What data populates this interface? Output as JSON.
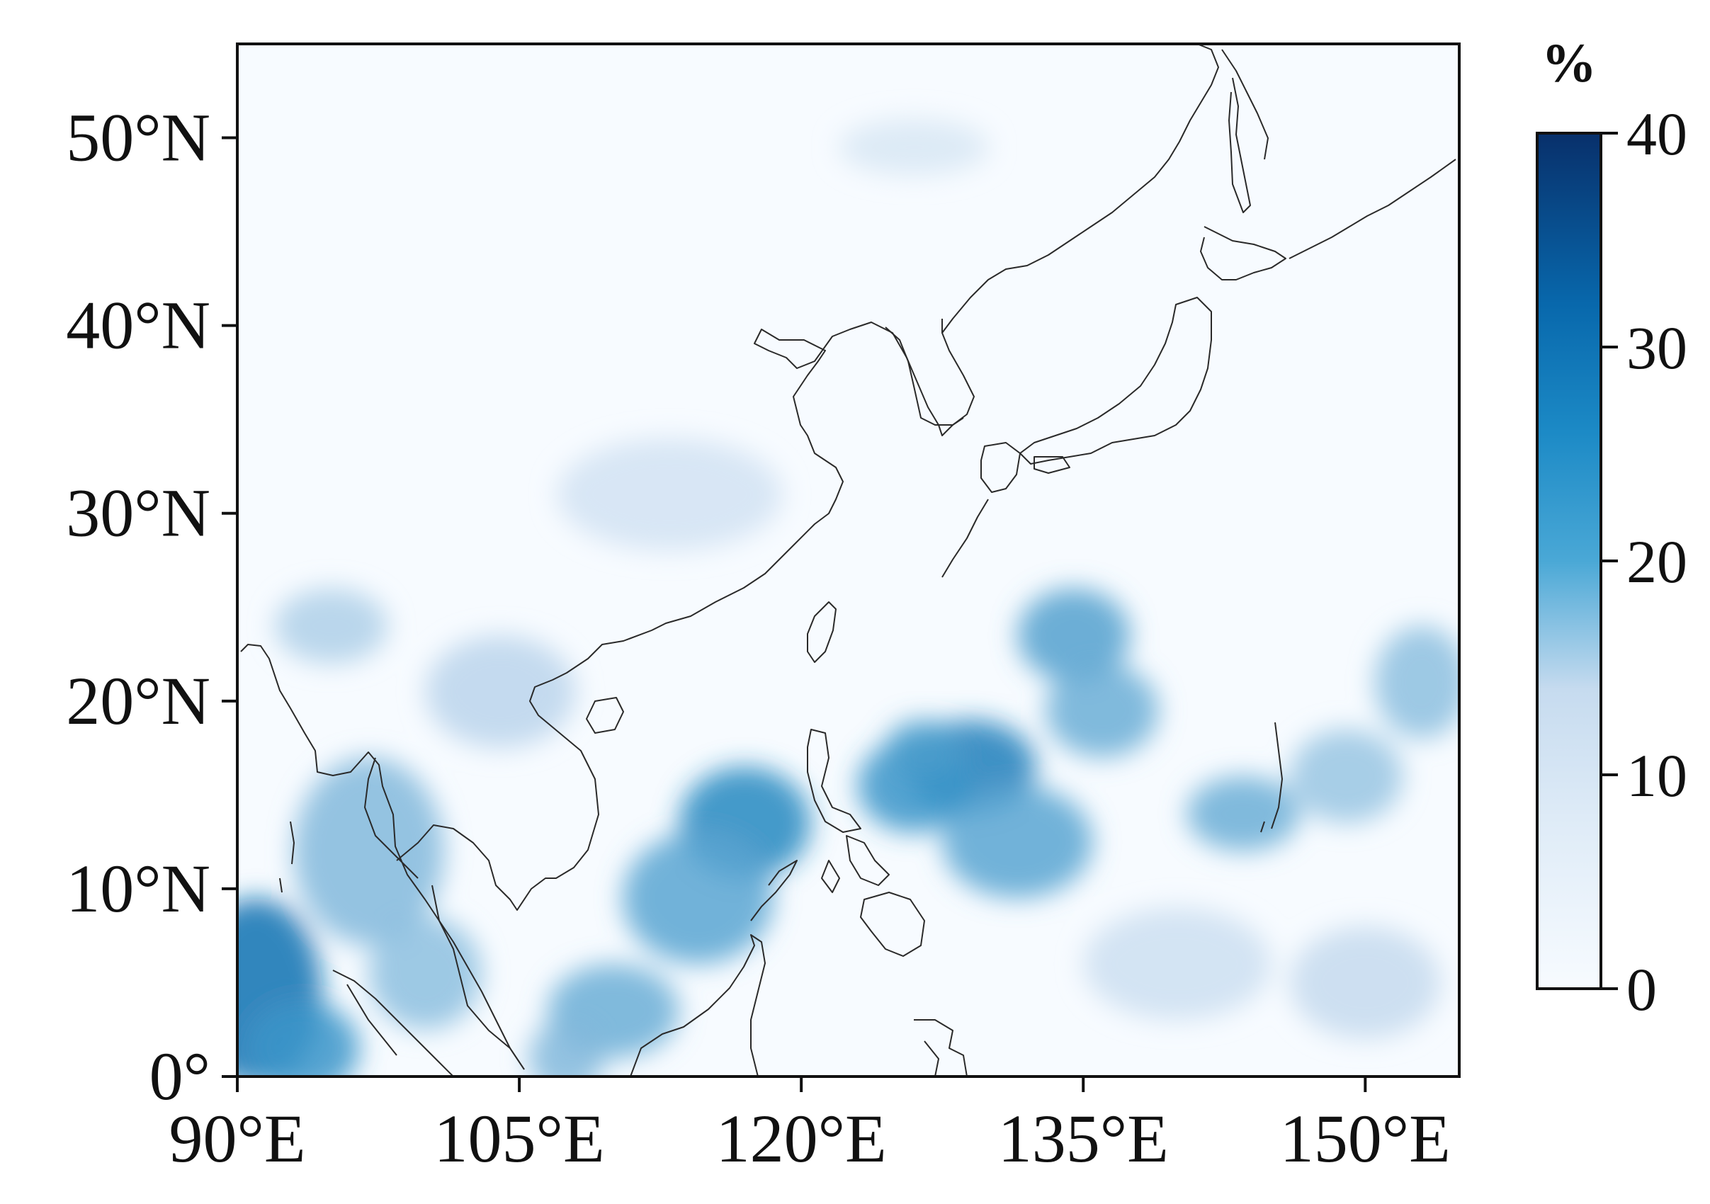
{
  "chart_data": {
    "type": "heatmap",
    "title": "",
    "xlabel": "",
    "ylabel": "",
    "x_ticks": [
      {
        "value": 90,
        "label": "90°E"
      },
      {
        "value": 105,
        "label": "105°E"
      },
      {
        "value": 120,
        "label": "120°E"
      },
      {
        "value": 135,
        "label": "135°E"
      },
      {
        "value": 150,
        "label": "150°E"
      }
    ],
    "y_ticks": [
      {
        "value": 0,
        "label": "0°"
      },
      {
        "value": 10,
        "label": "10°N"
      },
      {
        "value": 20,
        "label": "20°N"
      },
      {
        "value": 30,
        "label": "30°N"
      },
      {
        "value": 40,
        "label": "40°N"
      },
      {
        "value": 50,
        "label": "50°N"
      }
    ],
    "xlim": [
      90,
      155
    ],
    "ylim": [
      0,
      55
    ],
    "colorbar": {
      "label": "%",
      "range": [
        0,
        40
      ],
      "ticks": [
        {
          "value": 0,
          "label": "0"
        },
        {
          "value": 10,
          "label": "10"
        },
        {
          "value": 20,
          "label": "20"
        },
        {
          "value": 30,
          "label": "30"
        },
        {
          "value": 40,
          "label": "40"
        }
      ],
      "colormap": [
        "#f7fbff",
        "#c6dbef",
        "#6baed6",
        "#2b8cc4",
        "#0868ac",
        "#08306b"
      ]
    },
    "hotspots": [
      {
        "lon": 91.0,
        "lat": 4.5,
        "value": 30,
        "spread_lon": 3.5,
        "spread_lat": 5
      },
      {
        "lon": 93.5,
        "lat": 1.5,
        "value": 22,
        "spread_lon": 3,
        "spread_lat": 2.5
      },
      {
        "lon": 97.0,
        "lat": 12.0,
        "value": 14,
        "spread_lon": 4,
        "spread_lat": 5
      },
      {
        "lon": 95.0,
        "lat": 24.0,
        "value": 10,
        "spread_lon": 3,
        "spread_lat": 2
      },
      {
        "lon": 117.0,
        "lat": 13.5,
        "value": 25,
        "spread_lon": 3.5,
        "spread_lat": 3
      },
      {
        "lon": 114.5,
        "lat": 9.5,
        "value": 18,
        "spread_lon": 4,
        "spread_lat": 3.5
      },
      {
        "lon": 110.0,
        "lat": 3.5,
        "value": 16,
        "spread_lon": 3.5,
        "spread_lat": 2.5
      },
      {
        "lon": 107.5,
        "lat": 1.0,
        "value": 14,
        "spread_lon": 2,
        "spread_lat": 2
      },
      {
        "lon": 129.0,
        "lat": 16.5,
        "value": 27,
        "spread_lon": 3.5,
        "spread_lat": 2.5
      },
      {
        "lon": 126.0,
        "lat": 15.5,
        "value": 22,
        "spread_lon": 3,
        "spread_lat": 2.5
      },
      {
        "lon": 126.5,
        "lat": 17.5,
        "value": 20,
        "spread_lon": 2,
        "spread_lat": 1.5
      },
      {
        "lon": 131.5,
        "lat": 12.5,
        "value": 18,
        "spread_lon": 4,
        "spread_lat": 3
      },
      {
        "lon": 134.5,
        "lat": 23.5,
        "value": 19,
        "spread_lon": 3,
        "spread_lat": 2.5
      },
      {
        "lon": 136.0,
        "lat": 19.5,
        "value": 16,
        "spread_lon": 3,
        "spread_lat": 2.5
      },
      {
        "lon": 143.5,
        "lat": 14.0,
        "value": 16,
        "spread_lon": 3,
        "spread_lat": 2
      },
      {
        "lon": 149.0,
        "lat": 16.0,
        "value": 12,
        "spread_lon": 3,
        "spread_lat": 2.5
      },
      {
        "lon": 153.0,
        "lat": 21.0,
        "value": 13,
        "spread_lon": 2.5,
        "spread_lat": 3
      },
      {
        "lon": 104.0,
        "lat": 20.5,
        "value": 9,
        "spread_lon": 4,
        "spread_lat": 3
      },
      {
        "lon": 113.0,
        "lat": 31.0,
        "value": 6,
        "spread_lon": 6,
        "spread_lat": 3
      },
      {
        "lon": 126.0,
        "lat": 49.5,
        "value": 5,
        "spread_lon": 4,
        "spread_lat": 1.5
      },
      {
        "lon": 100.0,
        "lat": 5.5,
        "value": 13,
        "spread_lon": 3,
        "spread_lat": 3
      },
      {
        "lon": 150.0,
        "lat": 5.0,
        "value": 8,
        "spread_lon": 4,
        "spread_lat": 3
      },
      {
        "lon": 140.0,
        "lat": 6.0,
        "value": 7,
        "spread_lon": 5,
        "spread_lat": 3
      }
    ]
  }
}
